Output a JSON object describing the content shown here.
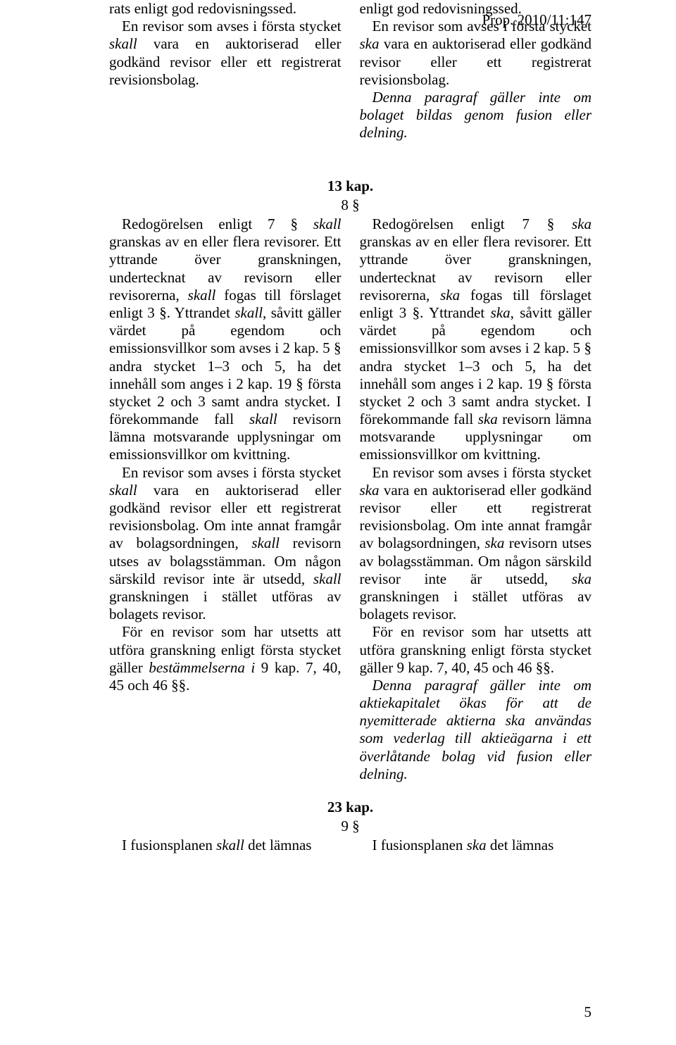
{
  "header": {
    "prop": "Prop. 2010/11:147"
  },
  "top": {
    "left": {
      "p1a": "rats enligt god redovisningssed.",
      "p2a": "En revisor som avses i första stycket ",
      "p2i": "skall",
      "p2b": " vara en auktoriserad eller godkänd revisor eller ett registrerat revisionsbolag."
    },
    "right": {
      "p1a": "enligt god redovisningssed.",
      "p2a": "En revisor som avses i första stycket ",
      "p2i": "ska",
      "p2b": " vara en auktoriserad eller godkänd revisor eller ett registrerat revisionsbolag.",
      "p3": "Denna paragraf gäller inte om bolaget bildas genom fusion eller delning."
    }
  },
  "kap13": {
    "heading": "13 kap.",
    "section": "8 §",
    "left": {
      "p1a": "Redogörelsen enligt 7 § ",
      "p1i1": "skall",
      "p1b": " granskas av en eller flera revisorer. Ett yttrande över granskningen, undertecknat av revisorn eller revisorerna, ",
      "p1i2": "skall",
      "p1c": " fogas till förslaget enligt 3 §. Yttrandet ",
      "p1i3": "skall",
      "p1d": ", såvitt gäller värdet på egendom och emissionsvillkor som avses i 2 kap. 5 § andra stycket 1–3 och 5, ha det innehåll som anges i 2 kap. 19 § första stycket 2 och 3 samt andra stycket. I förekommande fall ",
      "p1i4": "skall",
      "p1e": " revisorn lämna motsvarande upplysningar om emissionsvillkor om kvittning.",
      "p2a": "En revisor som avses i första stycket ",
      "p2i1": "skall",
      "p2b": " vara en auktoriserad eller godkänd revisor eller ett registrerat revisionsbolag. Om inte annat framgår av bolagsordningen, ",
      "p2i2": "skall",
      "p2c": " revisorn utses av bolagsstämman. Om någon särskild revisor inte är utsedd, ",
      "p2i3": "skall",
      "p2d": " granskningen i stället utföras av bolagets revisor.",
      "p3a": "För en revisor som har utsetts att utföra granskning enligt första stycket gäller ",
      "p3i": "bestämmelserna i",
      "p3b": " 9 kap. 7, 40, 45 och 46 §§."
    },
    "right": {
      "p1a": "Redogörelsen enligt 7 § ",
      "p1i1": "ska",
      "p1b": " granskas av en eller flera revisorer. Ett yttrande över granskningen, undertecknat av revisorn eller revisorerna, ",
      "p1i2": "ska",
      "p1c": " fogas till förslaget enligt 3 §. Yttrandet ",
      "p1i3": "ska",
      "p1d": ", såvitt gäller värdet på egendom och emissionsvillkor som avses i 2 kap. 5 § andra stycket 1–3 och 5, ha det innehåll som anges i 2 kap. 19 § första stycket 2 och 3 samt andra stycket. I förekommande fall ",
      "p1i4": "ska",
      "p1e": " revisorn lämna motsvarande upplysningar om emissionsvillkor om kvittning.",
      "p2a": "En revisor som avses i första stycket ",
      "p2i1": "ska",
      "p2b": " vara en auktoriserad eller godkänd revisor eller ett registrerat revisionsbolag. Om inte annat framgår av bolagsordningen, ",
      "p2i2": "ska",
      "p2c": " revisorn utses av bolagsstämman. Om någon särskild revisor inte är utsedd, ",
      "p2i3": "ska",
      "p2d": " granskningen i stället utföras av bolagets revisor.",
      "p3a": "För en revisor som har utsetts att utföra granskning enligt första stycket gäller 9 kap. 7, 40, 45 och 46 §§.",
      "p4": "Denna paragraf gäller inte om aktiekapitalet ökas för att de nyemitterade aktierna ska användas som vederlag till aktieägarna i ett överlåtande bolag vid fusion eller delning."
    }
  },
  "kap23": {
    "heading": "23 kap.",
    "section": "9 §",
    "left": {
      "a": "I fusionsplanen ",
      "i": "skall",
      "b": " det lämnas"
    },
    "right": {
      "a": "I fusionsplanen ",
      "i": "ska",
      "b": " det lämnas"
    }
  },
  "footer": {
    "page": "5"
  }
}
